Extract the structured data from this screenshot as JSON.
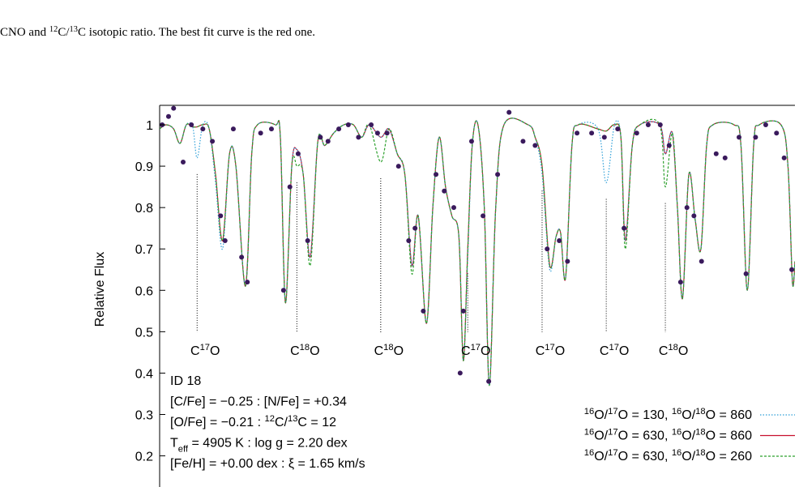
{
  "caption": {
    "parts": [
      {
        "text": "CNO and "
      },
      {
        "text": "12",
        "sup": true
      },
      {
        "text": "C/"
      },
      {
        "text": "13",
        "sup": true
      },
      {
        "text": "C isotopic ratio. The best fit curve is the red one."
      }
    ]
  },
  "chart_data": {
    "type": "line",
    "ylabel": "Relative Flux",
    "ylim": [
      0.16,
      1.047
    ],
    "yticks": [
      0.2,
      0.3,
      0.4,
      0.5,
      0.6,
      0.7,
      0.8,
      0.9,
      1
    ],
    "xlim": [
      0,
      100
    ],
    "legend_position": "lower right",
    "x": [
      0,
      1.0,
      2.2,
      3.2,
      4.2,
      5.2,
      5.9,
      6.8,
      7.8,
      8.8,
      9.9,
      11.0,
      12.0,
      13.5,
      14.5,
      15.4,
      18.2,
      19.0,
      19.8,
      20.8,
      21.6,
      22.6,
      23.7,
      24.9,
      26.0,
      27.4,
      29.0,
      30.5,
      31.8,
      33.0,
      34.8,
      36.1,
      37.4,
      38.6,
      39.7,
      40.7,
      42.0,
      43.0,
      44.0,
      45.0,
      46.0,
      47.1,
      47.8,
      48.5,
      49.2,
      50.1,
      51.1,
      51.9,
      52.9,
      54.2,
      58.0,
      59.1,
      60.2,
      61.4,
      62.4,
      63.1,
      63.9,
      64.9,
      65.9,
      69.0,
      70.3,
      71.6,
      72.6,
      73.3,
      74.4,
      75.6,
      78.7,
      79.6,
      80.7,
      81.5,
      82.3,
      83.3,
      84.3,
      85.2,
      86.1,
      87.1,
      90.4,
      91.5,
      92.5,
      93.5,
      94.4,
      97.8,
      98.9,
      99.6,
      100
    ],
    "series": [
      {
        "name": [
          {
            "text": "16",
            "sup": true
          },
          {
            "text": "O/"
          },
          {
            "text": "17",
            "sup": true
          },
          {
            "text": "O = 130, "
          },
          {
            "text": "16",
            "sup": true
          },
          {
            "text": "O/"
          },
          {
            "text": "18",
            "sup": true
          },
          {
            "text": "O = 860"
          }
        ],
        "color": "#2e9fd8",
        "dash": "1.5 2",
        "values": [
          0.99,
          1.0,
          0.99,
          0.955,
          1.0,
          0.995,
          0.92,
          1.0,
          0.99,
          0.86,
          0.7,
          0.93,
          0.9,
          0.61,
          0.93,
          1.0,
          1.0,
          0.97,
          0.57,
          0.9,
          0.94,
          0.88,
          0.68,
          0.96,
          0.95,
          0.98,
          1.0,
          1.0,
          0.97,
          1.0,
          0.97,
          0.99,
          0.93,
          0.88,
          0.66,
          0.78,
          0.52,
          0.8,
          0.97,
          0.85,
          0.78,
          0.73,
          0.43,
          0.68,
          0.95,
          1.0,
          0.8,
          0.37,
          0.8,
          1.0,
          1.0,
          0.97,
          0.88,
          0.65,
          0.73,
          0.74,
          0.63,
          0.95,
          1.0,
          0.99,
          0.86,
          1.0,
          0.97,
          0.72,
          0.95,
          1.0,
          1.0,
          0.93,
          0.98,
          0.8,
          0.58,
          0.88,
          0.77,
          0.7,
          0.95,
          1.0,
          1.0,
          0.95,
          0.6,
          0.95,
          1.0,
          1.0,
          0.9,
          0.62,
          0.67
        ]
      },
      {
        "name": [
          {
            "text": "16",
            "sup": true
          },
          {
            "text": "O/"
          },
          {
            "text": "17",
            "sup": true
          },
          {
            "text": "O = 630, "
          },
          {
            "text": "16",
            "sup": true
          },
          {
            "text": "O/"
          },
          {
            "text": "18",
            "sup": true
          },
          {
            "text": "O = 860"
          }
        ],
        "color": "#c8102e",
        "dash": "none",
        "values": [
          0.99,
          1.0,
          0.99,
          0.955,
          1.0,
          0.995,
          0.995,
          1.0,
          0.99,
          0.88,
          0.72,
          0.93,
          0.9,
          0.61,
          0.93,
          1.0,
          1.0,
          0.97,
          0.57,
          0.9,
          0.94,
          0.88,
          0.68,
          0.96,
          0.95,
          0.98,
          1.0,
          1.0,
          0.97,
          1.0,
          0.97,
          0.99,
          0.93,
          0.88,
          0.66,
          0.78,
          0.52,
          0.8,
          0.97,
          0.85,
          0.78,
          0.73,
          0.43,
          0.7,
          0.95,
          1.0,
          0.8,
          0.37,
          0.8,
          1.0,
          1.0,
          0.97,
          0.9,
          0.66,
          0.73,
          0.74,
          0.63,
          0.95,
          1.0,
          0.99,
          0.985,
          1.0,
          0.97,
          0.72,
          0.95,
          1.0,
          1.0,
          0.93,
          0.98,
          0.8,
          0.58,
          0.88,
          0.77,
          0.7,
          0.95,
          1.0,
          1.0,
          0.95,
          0.6,
          0.95,
          1.0,
          1.0,
          0.9,
          0.62,
          0.67
        ]
      },
      {
        "name": [
          {
            "text": "16",
            "sup": true
          },
          {
            "text": "O/"
          },
          {
            "text": "17",
            "sup": true
          },
          {
            "text": "O = 630, "
          },
          {
            "text": "16",
            "sup": true
          },
          {
            "text": "O/"
          },
          {
            "text": "18",
            "sup": true
          },
          {
            "text": "O = 260"
          }
        ],
        "color": "#2ca02c",
        "dash": "3 2",
        "values": [
          0.99,
          1.0,
          0.99,
          0.955,
          1.0,
          0.995,
          0.995,
          1.0,
          0.99,
          0.88,
          0.72,
          0.93,
          0.9,
          0.61,
          0.93,
          1.0,
          1.0,
          0.97,
          0.57,
          0.9,
          0.9,
          0.88,
          0.66,
          0.96,
          0.95,
          0.98,
          1.0,
          1.0,
          0.97,
          1.0,
          0.91,
          0.99,
          0.93,
          0.88,
          0.64,
          0.78,
          0.52,
          0.8,
          0.97,
          0.85,
          0.78,
          0.73,
          0.43,
          0.7,
          0.95,
          1.0,
          0.8,
          0.37,
          0.8,
          1.0,
          1.0,
          0.97,
          0.9,
          0.66,
          0.73,
          0.74,
          0.63,
          0.95,
          1.0,
          0.99,
          0.985,
          1.0,
          0.97,
          0.7,
          0.95,
          1.0,
          1.0,
          0.85,
          0.98,
          0.8,
          0.58,
          0.88,
          0.77,
          0.7,
          0.95,
          1.0,
          1.0,
          0.95,
          0.6,
          0.95,
          1.0,
          1.0,
          0.9,
          0.62,
          0.67
        ]
      }
    ],
    "observed": {
      "color": "#3a1a5c",
      "x": [
        0.4,
        1.4,
        2.2,
        3.7,
        5.0,
        6.8,
        8.3,
        9.6,
        10.3,
        11.6,
        12.9,
        13.8,
        15.9,
        17.6,
        19.5,
        20.5,
        21.8,
        23.3,
        25.3,
        26.5,
        28.2,
        29.7,
        31.3,
        33.3,
        34.3,
        35.8,
        37.6,
        39.2,
        40.2,
        41.5,
        43.5,
        44.8,
        46.3,
        47.3,
        47.8,
        49.1,
        50.9,
        51.8,
        53.2,
        55.0,
        57.2,
        59.1,
        61.0,
        62.9,
        64.2,
        65.7,
        68.0,
        70.0,
        72.1,
        73.1,
        75.1,
        76.9,
        78.8,
        80.2,
        82.0,
        83.0,
        84.1,
        85.3,
        87.6,
        89.0,
        91.2,
        92.3,
        93.8,
        95.4,
        97.1,
        98.3,
        99.5
      ],
      "values": [
        1.0,
        1.02,
        1.04,
        0.91,
        1.0,
        0.99,
        0.96,
        0.78,
        0.72,
        0.99,
        0.68,
        0.62,
        0.98,
        0.99,
        0.6,
        0.85,
        0.93,
        0.72,
        0.97,
        0.96,
        0.99,
        1.0,
        0.97,
        1.0,
        0.98,
        0.98,
        0.9,
        0.72,
        0.75,
        0.55,
        0.88,
        0.84,
        0.8,
        0.4,
        0.55,
        0.96,
        0.78,
        0.38,
        0.88,
        1.03,
        0.96,
        0.95,
        0.7,
        0.72,
        0.67,
        0.98,
        0.98,
        0.97,
        0.99,
        0.75,
        0.98,
        1.0,
        1.0,
        0.95,
        0.62,
        0.8,
        0.78,
        0.67,
        0.93,
        0.92,
        0.97,
        0.64,
        0.97,
        1.0,
        0.98,
        0.92,
        0.65
      ]
    },
    "line_ids": [
      {
        "x": 5.9,
        "label": [
          {
            "text": "C"
          },
          {
            "text": "17",
            "sup": true
          },
          {
            "text": "O"
          }
        ]
      },
      {
        "x": 21.6,
        "label": [
          {
            "text": "C"
          },
          {
            "text": "18",
            "sup": true
          },
          {
            "text": "O"
          }
        ]
      },
      {
        "x": 34.8,
        "label": [
          {
            "text": "C"
          },
          {
            "text": "18",
            "sup": true
          },
          {
            "text": "O"
          }
        ]
      },
      {
        "x": 48.5,
        "label": [
          {
            "text": "C"
          },
          {
            "text": "17",
            "sup": true
          },
          {
            "text": "O"
          }
        ]
      },
      {
        "x": 60.2,
        "label": [
          {
            "text": "C"
          },
          {
            "text": "17",
            "sup": true
          },
          {
            "text": "O"
          }
        ]
      },
      {
        "x": 70.3,
        "label": [
          {
            "text": "C"
          },
          {
            "text": "17",
            "sup": true
          },
          {
            "text": "O"
          }
        ]
      },
      {
        "x": 79.6,
        "label": [
          {
            "text": "C"
          },
          {
            "text": "18",
            "sup": true
          },
          {
            "text": "O"
          }
        ]
      }
    ],
    "info": [
      [
        {
          "text": "ID 18"
        }
      ],
      [
        {
          "text": "[C/Fe] = −0.25 : [N/Fe] = +0.34"
        }
      ],
      [
        {
          "text": "[O/Fe] = −0.21 : "
        },
        {
          "text": "12",
          "sup": true
        },
        {
          "text": "C/"
        },
        {
          "text": "13",
          "sup": true
        },
        {
          "text": "C = 12"
        }
      ],
      [
        {
          "text": "T"
        },
        {
          "text": "eff",
          "sub": true
        },
        {
          "text": " = 4905 K : log g = 2.20 dex"
        }
      ],
      [
        {
          "text": "[Fe/H] = +0.00 dex : ξ = 1.65 km/s"
        }
      ]
    ]
  }
}
